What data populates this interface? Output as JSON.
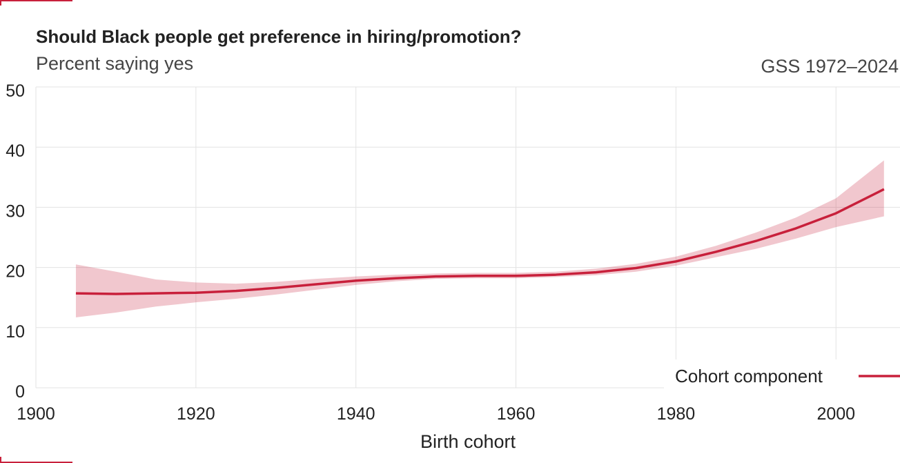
{
  "chart_data": {
    "type": "line",
    "title": "Should Black people get preference in hiring/promotion?",
    "subtitle": "Percent saying yes",
    "source": "GSS 1972–2024",
    "x_label": "Birth cohort",
    "x": [
      1905,
      1910,
      1915,
      1920,
      1925,
      1930,
      1935,
      1940,
      1945,
      1950,
      1955,
      1960,
      1965,
      1970,
      1975,
      1980,
      1985,
      1990,
      1995,
      2000,
      2006
    ],
    "series": [
      {
        "name": "Cohort component",
        "color": "#c8203b",
        "values": [
          15.7,
          15.6,
          15.7,
          15.8,
          16.1,
          16.6,
          17.2,
          17.8,
          18.2,
          18.5,
          18.6,
          18.6,
          18.8,
          19.2,
          19.9,
          21.0,
          22.6,
          24.4,
          26.5,
          29.0,
          33.0
        ],
        "lower": [
          11.7,
          12.5,
          13.5,
          14.2,
          14.8,
          15.5,
          16.3,
          17.1,
          17.7,
          18.1,
          18.2,
          18.2,
          18.4,
          18.7,
          19.3,
          20.3,
          21.7,
          23.1,
          24.8,
          26.7,
          28.5
        ],
        "upper": [
          20.5,
          19.3,
          18.0,
          17.5,
          17.3,
          17.6,
          18.1,
          18.5,
          18.8,
          19.0,
          19.1,
          19.1,
          19.3,
          19.8,
          20.6,
          21.8,
          23.6,
          25.8,
          28.3,
          31.5,
          37.8
        ]
      }
    ],
    "xlim": [
      1900,
      2008
    ],
    "xticks": [
      1900,
      1920,
      1940,
      1960,
      1980,
      2000
    ],
    "ylim": [
      0,
      50
    ],
    "yticks": [
      0,
      10,
      20,
      30,
      40,
      50
    ],
    "grid": true,
    "legend": "bottom-right"
  }
}
